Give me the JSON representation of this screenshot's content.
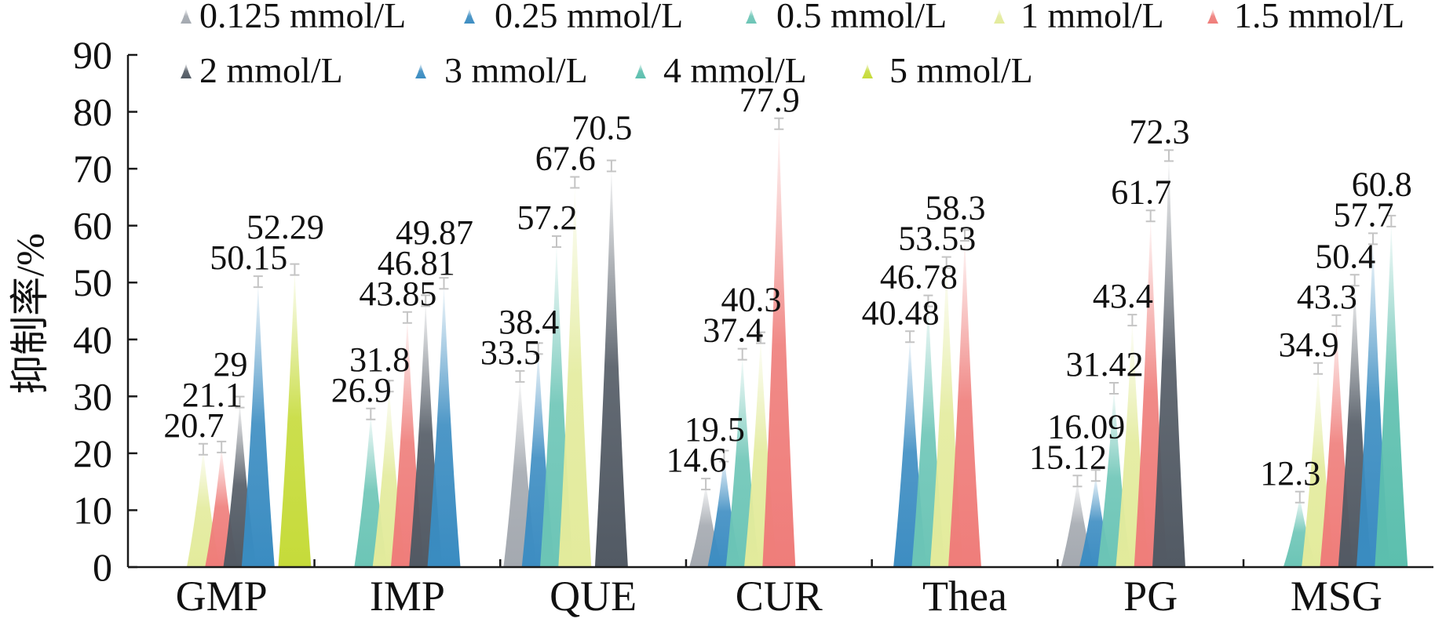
{
  "chart_data": {
    "type": "bar",
    "ylabel": "抑制率/%",
    "ylim": [
      0,
      90
    ],
    "yticks": [
      0,
      10,
      20,
      30,
      40,
      50,
      60,
      70,
      80,
      90
    ],
    "categories": [
      "GMP",
      "IMP",
      "QUE",
      "CUR",
      "Thea",
      "PG",
      "MSG"
    ],
    "series": [
      {
        "name": "0.125 mmol/L",
        "color": "#a4a9b0",
        "values": [
          null,
          null,
          33.5,
          14.6,
          null,
          15.12,
          null
        ]
      },
      {
        "name": "0.25 mmol/L",
        "color": "#3d8dc2",
        "values": [
          null,
          null,
          38.4,
          19.5,
          40.48,
          16.09,
          null
        ]
      },
      {
        "name": "0.5 mmol/L",
        "color": "#6cc5b6",
        "values": [
          null,
          26.9,
          57.2,
          37.4,
          46.78,
          31.42,
          12.3
        ]
      },
      {
        "name": "1 mmol/L",
        "color": "#e3eb9c",
        "values": [
          20.7,
          31.8,
          67.6,
          40.3,
          53.53,
          43.4,
          34.9
        ]
      },
      {
        "name": "1.5 mmol/L",
        "color": "#ef7d7a",
        "values": [
          21.1,
          43.85,
          null,
          77.9,
          58.3,
          61.7,
          43.3
        ]
      },
      {
        "name": "2 mmol/L",
        "color": "#525a64",
        "values": [
          29,
          46.81,
          70.5,
          null,
          null,
          72.3,
          50.4
        ]
      },
      {
        "name": "3 mmol/L",
        "color": "#3a8cc1",
        "values": [
          50.15,
          49.87,
          null,
          null,
          null,
          null,
          57.7
        ]
      },
      {
        "name": "4 mmol/L",
        "color": "#5cbfae",
        "values": [
          null,
          null,
          null,
          null,
          null,
          null,
          60.8
        ]
      },
      {
        "name": "5 mmol/L",
        "color": "#c6db3a",
        "values": [
          52.29,
          null,
          null,
          null,
          null,
          null,
          null
        ]
      }
    ],
    "legend": "top",
    "error_bars": true,
    "grid": false
  }
}
